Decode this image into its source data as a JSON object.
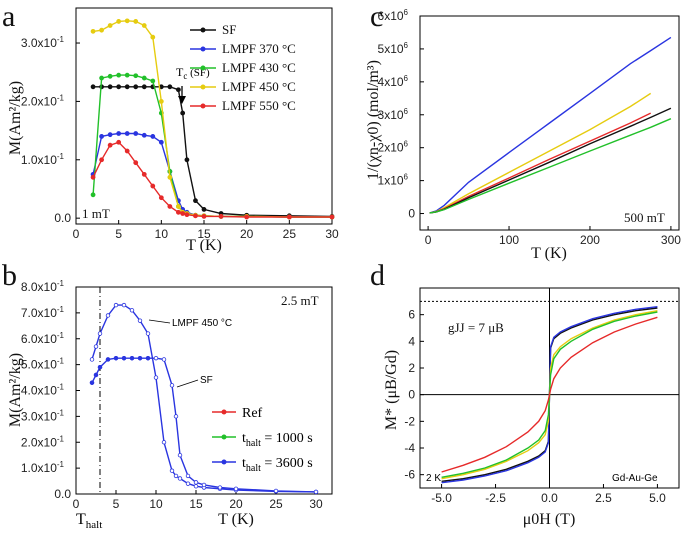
{
  "panels": {
    "a": {
      "label": "a",
      "xlabel": "T (K)",
      "ylabel": "M(Am²/kg)",
      "note": "1 mT",
      "tc_label": "T",
      "tc_sub": "c",
      "tc_suffix": " (SF)",
      "x_ticks": [
        "0",
        "5",
        "10",
        "15",
        "20",
        "25",
        "30"
      ],
      "y_ticks": [
        "0.0",
        "1.0x10",
        "2.0x10",
        "3.0x10"
      ],
      "y_exp": "-1",
      "legend": [
        "SF",
        "LMPF 370 °C",
        "LMPF 430 °C",
        "LMPF 450 °C",
        "LMPF 550 °C"
      ]
    },
    "b": {
      "label": "b",
      "xlabel": "T (K)",
      "ylabel": "M(Am²/kg)",
      "note": "2.5 mT",
      "x_ticks": [
        "0",
        "5",
        "10",
        "15",
        "20",
        "25",
        "30"
      ],
      "y_ticks": [
        "0.0",
        "1.0x10",
        "2.0x10",
        "3.0x10",
        "4.0x10",
        "5.0x10",
        "6.0x10",
        "7.0x10",
        "8.0x10"
      ],
      "y_exp": "-1",
      "thalt_label": "T",
      "thalt_sub": "halt",
      "ann_lmpf": "LMPF 450 °C",
      "ann_sf": "SF",
      "legend": [
        {
          "main": "Ref",
          "sub": ""
        },
        {
          "main": "t",
          "sub": "halt",
          "rest": " = 1000 s"
        },
        {
          "main": "t",
          "sub": "halt",
          "rest": " = 3600 s"
        }
      ]
    },
    "c": {
      "label": "c",
      "xlabel": "T (K)",
      "ylabel": "1/(χn-χ0) (mol/m³)",
      "note": "500 mT",
      "x_ticks": [
        "0",
        "100",
        "200",
        "300"
      ],
      "y_ticks": [
        "0",
        "1x10",
        "2x10",
        "3x10",
        "4x10",
        "5x10",
        "6x10"
      ],
      "y_exp": "6"
    },
    "d": {
      "label": "d",
      "xlabel": "μ0H (T)",
      "ylabel": "M* (μB/Gd)",
      "note_gj": "gJJ = 7 μB",
      "note_temp": "2 K",
      "note_sample": "Gd-Au-Ge",
      "x_ticks": [
        "-5.0",
        "-2.5",
        "0.0",
        "2.5",
        "5.0"
      ],
      "y_ticks": [
        "-6",
        "-4",
        "-2",
        "0",
        "2",
        "4",
        "6"
      ]
    }
  },
  "colors": {
    "black": "#111111",
    "blue": "#2a35e0",
    "green": "#22c02a",
    "yellow": "#e6cc10",
    "red": "#e62a2a"
  },
  "chart_data": [
    {
      "type": "line",
      "title": "a",
      "xlabel": "T (K)",
      "ylabel": "M(Am²/kg)",
      "xlim": [
        0,
        30
      ],
      "ylim": [
        -0.01,
        0.36
      ],
      "x": [
        2,
        3,
        4,
        5,
        6,
        7,
        8,
        9,
        10,
        11,
        12,
        12.5,
        13,
        14,
        15,
        17,
        20,
        25,
        30
      ],
      "series": [
        {
          "name": "SF",
          "color": "black",
          "values": [
            0.225,
            0.225,
            0.225,
            0.225,
            0.225,
            0.225,
            0.225,
            0.225,
            0.225,
            0.225,
            0.22,
            0.18,
            0.1,
            0.03,
            0.015,
            0.008,
            0.005,
            0.004,
            0.003
          ]
        },
        {
          "name": "LMPF 370 °C",
          "color": "blue",
          "values": [
            0.075,
            0.14,
            0.143,
            0.145,
            0.145,
            0.145,
            0.142,
            0.14,
            0.13,
            0.08,
            0.03,
            0.015,
            0.01,
            0.005,
            0.004,
            0.003,
            0.003,
            0.002,
            0.002
          ]
        },
        {
          "name": "LMPF 430 °C",
          "color": "green",
          "values": [
            0.04,
            0.24,
            0.243,
            0.245,
            0.245,
            0.244,
            0.24,
            0.235,
            0.18,
            0.08,
            0.02,
            0.01,
            0.008,
            0.005,
            0.004,
            0.003,
            0.003,
            0.002,
            0.002
          ]
        },
        {
          "name": "LMPF 450 °C",
          "color": "yellow",
          "values": [
            0.32,
            0.322,
            0.33,
            0.337,
            0.338,
            0.337,
            0.33,
            0.31,
            0.2,
            0.07,
            0.02,
            0.01,
            0.008,
            0.005,
            0.004,
            0.003,
            0.003,
            0.002,
            0.002
          ]
        },
        {
          "name": "LMPF 550 °C",
          "color": "red",
          "values": [
            0.07,
            0.1,
            0.125,
            0.13,
            0.115,
            0.095,
            0.075,
            0.055,
            0.035,
            0.02,
            0.01,
            0.008,
            0.006,
            0.004,
            0.003,
            0.003,
            0.002,
            0.002,
            0.002
          ]
        }
      ]
    },
    {
      "type": "line",
      "title": "b",
      "xlabel": "T (K)",
      "ylabel": "M(Am²/kg)",
      "xlim": [
        0,
        32
      ],
      "ylim": [
        0,
        0.8
      ],
      "thalt": 3,
      "x": [
        2,
        2.5,
        3,
        4,
        5,
        6,
        7,
        8,
        9,
        10,
        11,
        12,
        12.5,
        13,
        14,
        15,
        16,
        18,
        20,
        25,
        30
      ],
      "series": [
        {
          "name": "LMPF 450 °C",
          "color": "blue",
          "values": [
            0.52,
            0.57,
            0.62,
            0.69,
            0.73,
            0.73,
            0.71,
            0.67,
            0.62,
            0.45,
            0.2,
            0.09,
            0.07,
            0.06,
            0.04,
            0.03,
            0.025,
            0.02,
            0.015,
            0.01,
            0.008
          ]
        },
        {
          "name": "SF",
          "color": "blue",
          "values": [
            0.43,
            0.46,
            0.49,
            0.52,
            0.525,
            0.525,
            0.525,
            0.525,
            0.525,
            0.525,
            0.52,
            0.42,
            0.3,
            0.15,
            0.07,
            0.045,
            0.035,
            0.025,
            0.02,
            0.012,
            0.008
          ]
        }
      ],
      "legend": [
        "Ref",
        "t_halt = 1000 s",
        "t_halt = 3600 s"
      ]
    },
    {
      "type": "line",
      "title": "c",
      "xlabel": "T (K)",
      "ylabel": "1/(χn-χ0) (mol/m³)",
      "xlim": [
        -10,
        310
      ],
      "ylim": [
        -500000.0,
        6000000.0
      ],
      "x": [
        2,
        10,
        20,
        50,
        100,
        150,
        200,
        250,
        275,
        300
      ],
      "series": [
        {
          "name": "blue",
          "color": "blue",
          "values": [
            20000.0,
            80000.0,
            250000.0,
            950000.0,
            1850000.0,
            2750000.0,
            3650000.0,
            4550000.0,
            4950000.0,
            5350000.0
          ]
        },
        {
          "name": "yellow",
          "color": "yellow",
          "values": [
            20000.0,
            60000.0,
            180000.0,
            600000.0,
            1250000.0,
            1900000.0,
            2550000.0,
            3250000.0,
            3650000.0,
            null
          ]
        },
        {
          "name": "red",
          "color": "red",
          "values": [
            20000.0,
            50000.0,
            150000.0,
            520000.0,
            1080000.0,
            1650000.0,
            2200000.0,
            2750000.0,
            3050000.0,
            null
          ]
        },
        {
          "name": "black",
          "color": "black",
          "values": [
            20000.0,
            50000.0,
            130000.0,
            480000.0,
            1020000.0,
            1560000.0,
            2120000.0,
            2650000.0,
            2920000.0,
            3200000.0
          ]
        },
        {
          "name": "green",
          "color": "green",
          "values": [
            20000.0,
            50000.0,
            120000.0,
            430000.0,
            920000.0,
            1410000.0,
            1900000.0,
            2380000.0,
            2620000.0,
            2880000.0
          ]
        }
      ]
    },
    {
      "type": "line",
      "title": "d",
      "xlabel": "μ0H (T)",
      "ylabel": "M* (μB/Gd)",
      "xlim": [
        -6,
        6
      ],
      "ylim": [
        -7,
        8
      ],
      "reference_line": 7,
      "x": [
        -5,
        -4,
        -3,
        -2,
        -1,
        -0.5,
        -0.2,
        -0.05,
        0,
        0.05,
        0.2,
        0.5,
        1,
        2,
        3,
        4,
        5
      ],
      "series": [
        {
          "name": "black",
          "color": "black",
          "values": [
            -6.5,
            -6.3,
            -6.0,
            -5.6,
            -5.0,
            -4.6,
            -4.2,
            -3.5,
            0,
            3.5,
            4.2,
            4.6,
            5.0,
            5.6,
            6.0,
            6.3,
            6.5
          ]
        },
        {
          "name": "blue",
          "color": "blue",
          "values": [
            -6.6,
            -6.4,
            -6.1,
            -5.7,
            -5.1,
            -4.7,
            -4.3,
            -3.6,
            0,
            3.6,
            4.3,
            4.7,
            5.1,
            5.7,
            6.1,
            6.4,
            6.6
          ]
        },
        {
          "name": "yellow",
          "color": "yellow",
          "values": [
            -6.3,
            -6.0,
            -5.6,
            -5.0,
            -4.2,
            -3.6,
            -3.0,
            -2.0,
            0,
            2.0,
            3.0,
            3.6,
            4.2,
            5.0,
            5.6,
            6.0,
            6.3
          ]
        },
        {
          "name": "green",
          "color": "green",
          "values": [
            -6.2,
            -5.9,
            -5.5,
            -4.9,
            -4.0,
            -3.4,
            -2.7,
            -1.5,
            0,
            1.5,
            2.7,
            3.4,
            4.0,
            4.9,
            5.5,
            5.9,
            6.2
          ]
        },
        {
          "name": "red",
          "color": "red",
          "values": [
            -5.8,
            -5.3,
            -4.7,
            -3.9,
            -2.8,
            -2.0,
            -1.2,
            -0.4,
            0,
            0.4,
            1.2,
            2.0,
            2.8,
            3.9,
            4.7,
            5.3,
            5.8
          ]
        }
      ]
    }
  ]
}
